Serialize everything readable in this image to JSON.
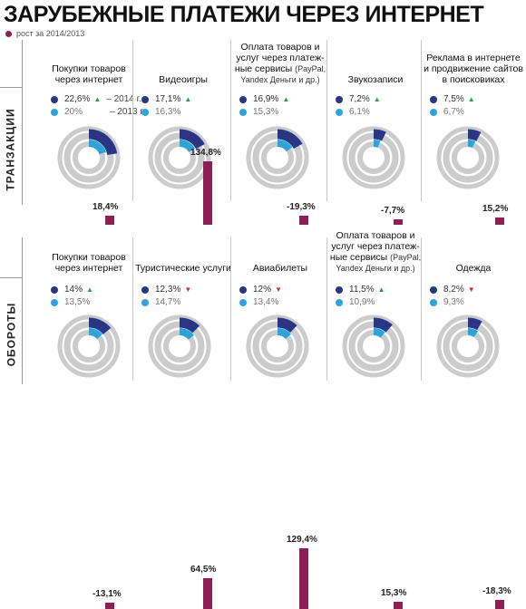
{
  "page": {
    "title": "ЗАРУБЕЖНЫЕ ПЛАТЕЖИ ЧЕРЕЗ ИНТЕРНЕТ",
    "legend": "рост за 2014/2013",
    "colors": {
      "cur": "#2a3583",
      "prev": "#2ea3da",
      "ring": "#cccccc",
      "growth": "#8b1f56",
      "up": "#2e9a48",
      "down": "#c0392b"
    }
  },
  "chart_data": [
    {
      "type": "donut-bar",
      "section": "ТРАНЗАКЦИИ",
      "year_labels": [
        "– 2014 г.",
        "– 2013 г."
      ],
      "items": [
        {
          "label": "Покупки товаров через интернет",
          "sub": "",
          "cur": 22.6,
          "prev": 20,
          "cur_text": "22,6%",
          "prev_text": "20%",
          "trend": "up",
          "growth": 18.4,
          "growth_text": "18,4%"
        },
        {
          "label": "Видеоигры",
          "sub": "",
          "cur": 17.1,
          "prev": 16.3,
          "cur_text": "17,1%",
          "prev_text": "16,3%",
          "trend": "up",
          "growth": 134.8,
          "growth_text": "134,8%"
        },
        {
          "label": "Оплата товаров и услуг через платеж-ные сервисы",
          "sub": "(PayPal, Yandex Деньги и др.)",
          "cur": 16.9,
          "prev": 15.3,
          "cur_text": "16,9%",
          "prev_text": "15,3%",
          "trend": "up",
          "growth": -19.3,
          "growth_text": "-19,3%"
        },
        {
          "label": "Звукозаписи",
          "sub": "",
          "cur": 7.2,
          "prev": 6.1,
          "cur_text": "7,2%",
          "prev_text": "6,1%",
          "trend": "up",
          "growth": -7.7,
          "growth_text": "-7,7%"
        },
        {
          "label": "Реклама в интернете и продвижение сайтов в поисковиках",
          "sub": "",
          "cur": 7.5,
          "prev": 6.7,
          "cur_text": "7,5%",
          "prev_text": "6,7%",
          "trend": "up",
          "growth": 15.2,
          "growth_text": "15,2%"
        }
      ]
    },
    {
      "type": "donut-bar",
      "section": "ОБОРОТЫ",
      "items": [
        {
          "label": "Покупки товаров через интернет",
          "sub": "",
          "cur": 14,
          "prev": 13.5,
          "cur_text": "14%",
          "prev_text": "13,5%",
          "trend": "up",
          "growth": -13.1,
          "growth_text": "-13,1%"
        },
        {
          "label": "Туристические услуги",
          "sub": "",
          "cur": 12.3,
          "prev": 14.7,
          "cur_text": "12,3%",
          "prev_text": "14,7%",
          "trend": "down",
          "growth": 64.5,
          "growth_text": "64,5%"
        },
        {
          "label": "Авиабилеты",
          "sub": "",
          "cur": 12,
          "prev": 13.4,
          "cur_text": "12%",
          "prev_text": "13,4%",
          "trend": "down",
          "growth": 129.4,
          "growth_text": "129,4%"
        },
        {
          "label": "Оплата товаров и услуг через платеж-ные сервисы",
          "sub": "(PayPal, Yandex Деньги и др.)",
          "cur": 11.5,
          "prev": 10.9,
          "cur_text": "11,5%",
          "prev_text": "10,9%",
          "trend": "up",
          "growth": 15.3,
          "growth_text": "15,3%"
        },
        {
          "label": "Одежда",
          "sub": "",
          "cur": 8.2,
          "prev": 9.3,
          "cur_text": "8,2%",
          "prev_text": "9,3%",
          "trend": "down",
          "growth": -18.3,
          "growth_text": "-18,3%"
        }
      ]
    }
  ]
}
